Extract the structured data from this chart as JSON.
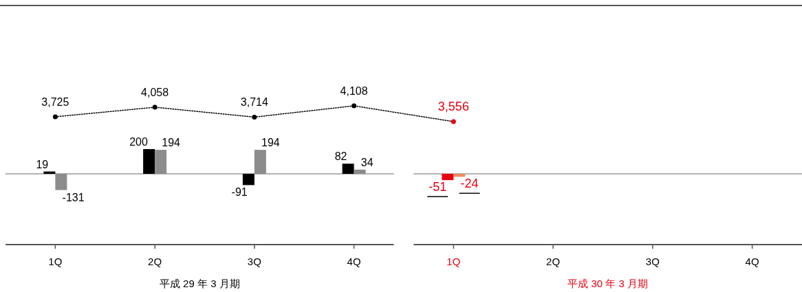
{
  "chart_data": [
    {
      "type": "line",
      "categories": [
        null,
        null,
        null,
        null,
        null,
        null,
        null,
        null
      ],
      "series": [
        {
          "color": "#000000",
          "line_style": "dotted",
          "marker": "circle",
          "colors": [
            "#000000",
            "#000000",
            "#000000",
            "#000000",
            "#e60012",
            null,
            null,
            null
          ],
          "values": [
            3725,
            4058,
            3714,
            4108,
            3556,
            null,
            null,
            null
          ],
          "value_labels": [
            "3,725",
            "4,058",
            "3,714",
            "4,108",
            "3,556",
            null,
            null,
            null
          ]
        }
      ]
    },
    {
      "type": "bar",
      "categories": [
        "1Q",
        "2Q",
        "3Q",
        "4Q",
        "1Q",
        "2Q",
        "3Q",
        "4Q"
      ],
      "series": [
        {
          "color": "#000000",
          "colors": [
            "#000000",
            "#000000",
            "#000000",
            "#000000",
            "#e60012",
            null,
            null,
            null
          ],
          "values": [
            19,
            200,
            -91,
            82,
            -51,
            null,
            null,
            null
          ]
        },
        {
          "color": "#8c8c8c",
          "colors": [
            "#8c8c8c",
            "#8c8c8c",
            "#8c8c8c",
            "#8c8c8c",
            "#f08c5a",
            null,
            null,
            null
          ],
          "values": [
            -131,
            194,
            194,
            34,
            -24,
            null,
            null,
            null
          ]
        }
      ],
      "data_labels": true,
      "ref_lines": [
        {
          "axis": "y",
          "value": 0,
          "color": "#999999"
        }
      ],
      "annotations": [
        "平成 29 年 3 月期",
        "平成 30 年 3 月期"
      ]
    }
  ]
}
